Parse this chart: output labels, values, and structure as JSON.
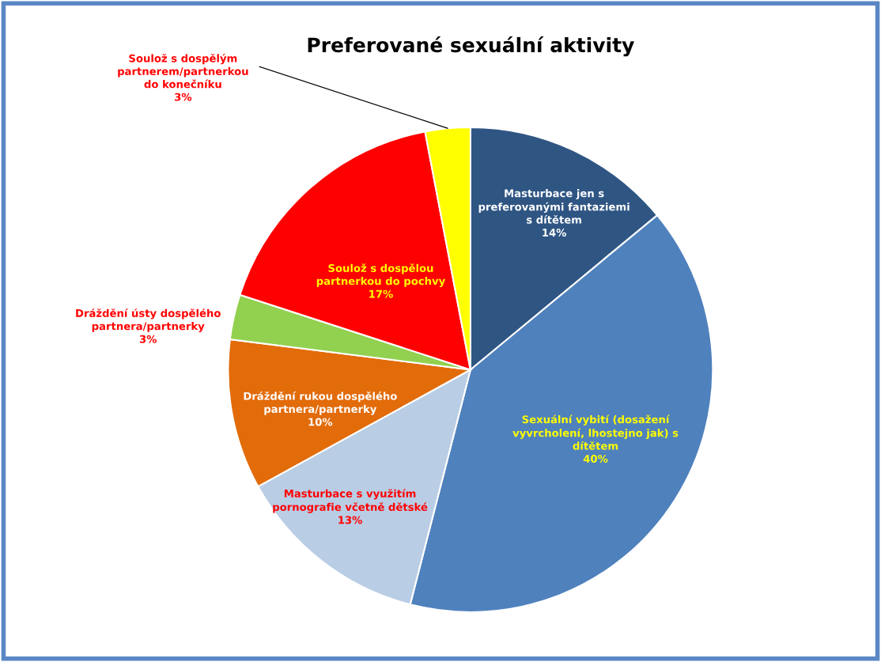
{
  "chart_data": {
    "type": "pie",
    "title": "Preferované sexuální aktivity",
    "categories": [
      "Masturbace jen s preferovanými fantaziemi s dítětem",
      "Sexuální vybití (dosažení vyvrcholení, lhostejno jak) s dítětem",
      "Masturbace s využitím pornografie včetně dětské",
      "Dráždění rukou dospělého partnera/partnerky",
      "Dráždění ústy dospělého partnera/partnerky",
      "Soulož s dospělou partnerkou do pochvy",
      "Soulož s dospělým partnerem/partnerkou do konečníku"
    ],
    "values": [
      14,
      40,
      13,
      10,
      3,
      17,
      3
    ],
    "value_labels": [
      "14%",
      "40%",
      "13%",
      "10%",
      "3%",
      "17%",
      "3%"
    ],
    "colors": [
      "#2f5583",
      "#4f81bd",
      "#b9cde5",
      "#e26b0a",
      "#92d050",
      "#ff0000",
      "#ffff00"
    ],
    "legend": false
  }
}
